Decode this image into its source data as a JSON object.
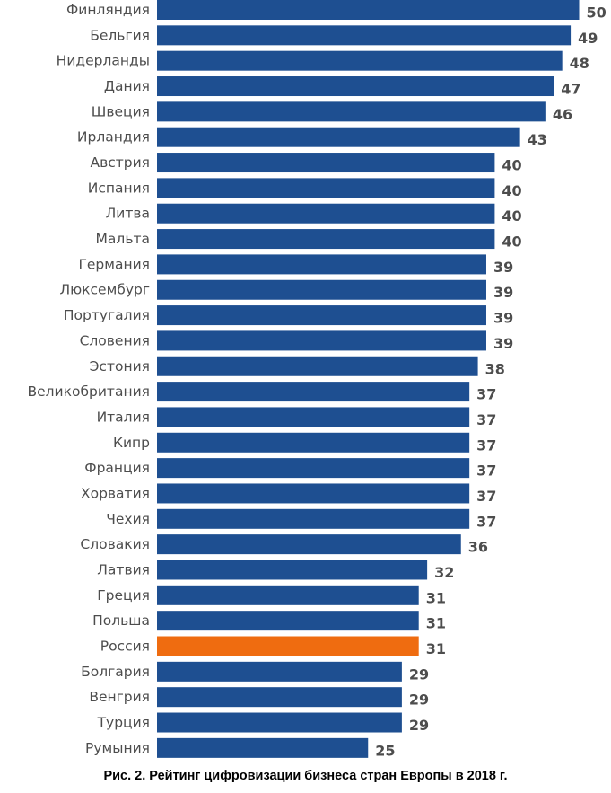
{
  "chart_data": {
    "type": "bar",
    "orientation": "horizontal",
    "title": "Рис. 2. Рейтинг цифровизации бизнеса стран Европы в 2018 г.",
    "xlabel": "",
    "ylabel": "",
    "xlim": [
      0,
      50
    ],
    "grid": false,
    "categories": [
      "Финляндия",
      "Бельгия",
      "Нидерланды",
      "Дания",
      "Швеция",
      "Ирландия",
      "Австрия",
      "Испания",
      "Литва",
      "Мальта",
      "Германия",
      "Люксембург",
      "Португалия",
      "Словения",
      "Эстония",
      "Великобритания",
      "Италия",
      "Кипр",
      "Франция",
      "Хорватия",
      "Чехия",
      "Словакия",
      "Латвия",
      "Греция",
      "Польша",
      "Россия",
      "Болгария",
      "Венгрия",
      "Турция",
      "Румыния"
    ],
    "values": [
      50,
      49,
      48,
      47,
      46,
      43,
      40,
      40,
      40,
      40,
      39,
      39,
      39,
      39,
      38,
      37,
      37,
      37,
      37,
      37,
      37,
      36,
      32,
      31,
      31,
      31,
      29,
      29,
      29,
      25
    ],
    "highlight": "Россия",
    "colors": {
      "bar": "#1e4f91",
      "highlight": "#ef6c10"
    }
  }
}
